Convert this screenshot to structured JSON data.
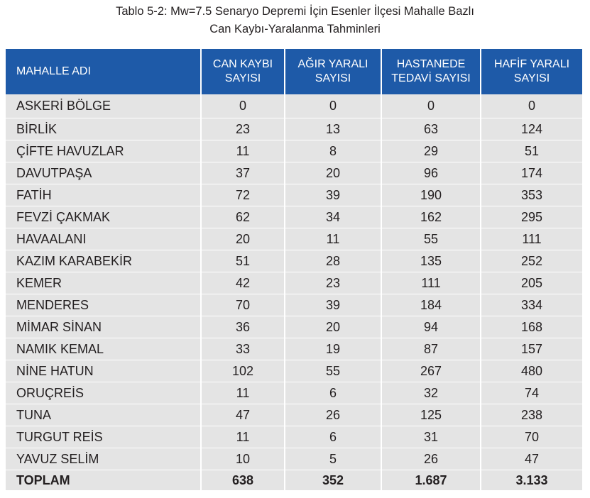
{
  "caption": {
    "line1": "Tablo 5-2: Mw=7.5 Senaryo Depremi İçin Esenler İlçesi Mahalle Bazlı",
    "line2": "Can Kaybı-Yaralanma Tahminleri"
  },
  "table": {
    "header_color": "#1e5aa8",
    "cell_color": "#e4e4e4",
    "columns": [
      {
        "line1": "MAHALLE ADI",
        "line2": ""
      },
      {
        "line1": "CAN KAYBI",
        "line2": "SAYISI"
      },
      {
        "line1": "AĞIR YARALI",
        "line2": "SAYISI"
      },
      {
        "line1": "HASTANEDE",
        "line2": "TEDAVİ SAYISI"
      },
      {
        "line1": "HAFİF YARALI",
        "line2": "SAYISI"
      }
    ],
    "rows": [
      [
        "ASKERİ BÖLGE",
        "0",
        "0",
        "0",
        "0"
      ],
      [
        "BİRLİK",
        "23",
        "13",
        "63",
        "124"
      ],
      [
        "ÇİFTE HAVUZLAR",
        "11",
        "8",
        "29",
        "51"
      ],
      [
        "DAVUTPAŞA",
        "37",
        "20",
        "96",
        "174"
      ],
      [
        "FATİH",
        "72",
        "39",
        "190",
        "353"
      ],
      [
        "FEVZİ ÇAKMAK",
        "62",
        "34",
        "162",
        "295"
      ],
      [
        "HAVAALANI",
        "20",
        "11",
        "55",
        "111"
      ],
      [
        "KAZIM KARABEKİR",
        "51",
        "28",
        "135",
        "252"
      ],
      [
        "KEMER",
        "42",
        "23",
        "111",
        "205"
      ],
      [
        "MENDERES",
        "70",
        "39",
        "184",
        "334"
      ],
      [
        "MİMAR SİNAN",
        "36",
        "20",
        "94",
        "168"
      ],
      [
        "NAMIK KEMAL",
        "33",
        "19",
        "87",
        "157"
      ],
      [
        "NİNE HATUN",
        "102",
        "55",
        "267",
        "480"
      ],
      [
        "ORUÇREİS",
        "11",
        "6",
        "32",
        "74"
      ],
      [
        "TUNA",
        "47",
        "26",
        "125",
        "238"
      ],
      [
        "TURGUT REİS",
        "11",
        "6",
        "31",
        "70"
      ],
      [
        "YAVUZ SELİM",
        "10",
        "5",
        "26",
        "47"
      ]
    ],
    "total": [
      "TOPLAM",
      "638",
      "352",
      "1.687",
      "3.133"
    ]
  }
}
